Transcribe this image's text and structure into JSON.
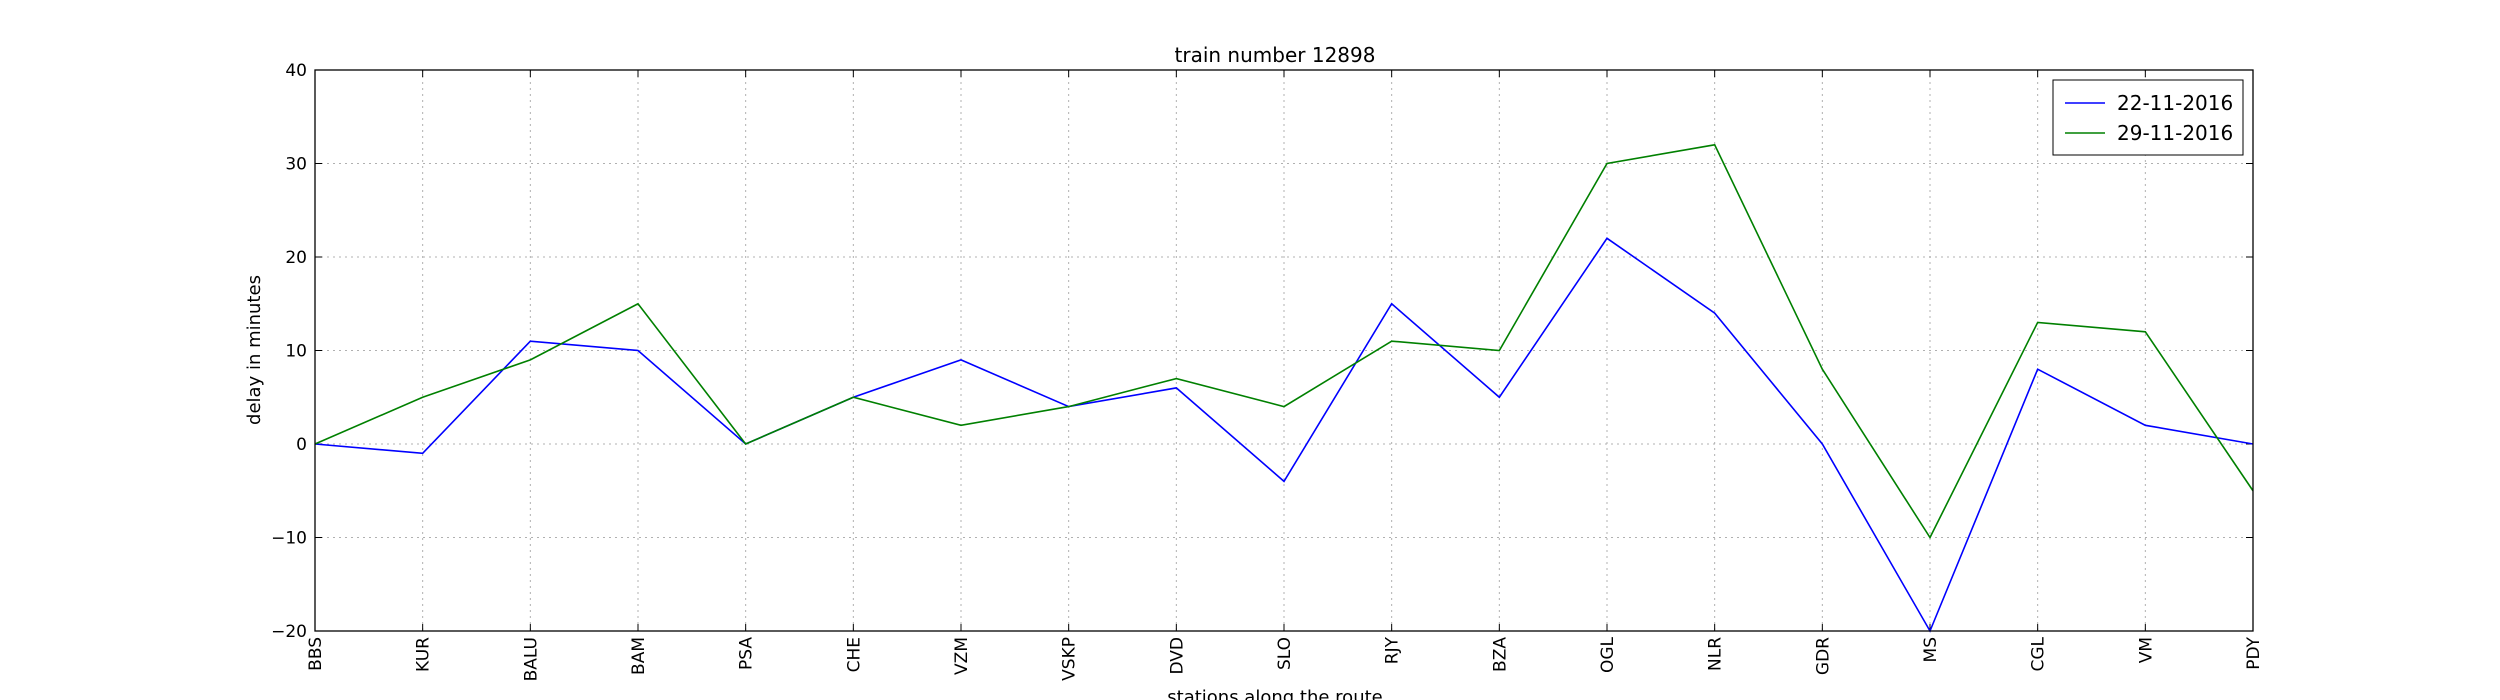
{
  "chart_data": {
    "type": "line",
    "title": "train number 12898",
    "xlabel": "stations along the route",
    "ylabel": "delay in minutes",
    "categories": [
      "BBS",
      "KUR",
      "BALU",
      "BAM",
      "PSA",
      "CHE",
      "VZM",
      "VSKP",
      "DVD",
      "SLO",
      "RJY",
      "BZA",
      "OGL",
      "NLR",
      "GDR",
      "MS",
      "CGL",
      "VM",
      "PDY"
    ],
    "ylim": [
      -20,
      40
    ],
    "yticks": [
      -20,
      -10,
      0,
      10,
      20,
      30,
      40
    ],
    "ytick_labels": [
      "−20",
      "−10",
      "0",
      "10",
      "20",
      "30",
      "40"
    ],
    "grid": true,
    "legend_position": "top-right",
    "series": [
      {
        "name": "22-11-2016",
        "color": "#0000ff",
        "values": [
          0,
          -1,
          11,
          10,
          0,
          5,
          9,
          4,
          6,
          -4,
          15,
          5,
          22,
          14,
          0,
          -20,
          8,
          2,
          0
        ]
      },
      {
        "name": "29-11-2016",
        "color": "#008000",
        "values": [
          0,
          5,
          9,
          15,
          0,
          5,
          2,
          4,
          7,
          4,
          11,
          10,
          30,
          32,
          8,
          -10,
          13,
          12,
          -5
        ]
      }
    ]
  }
}
